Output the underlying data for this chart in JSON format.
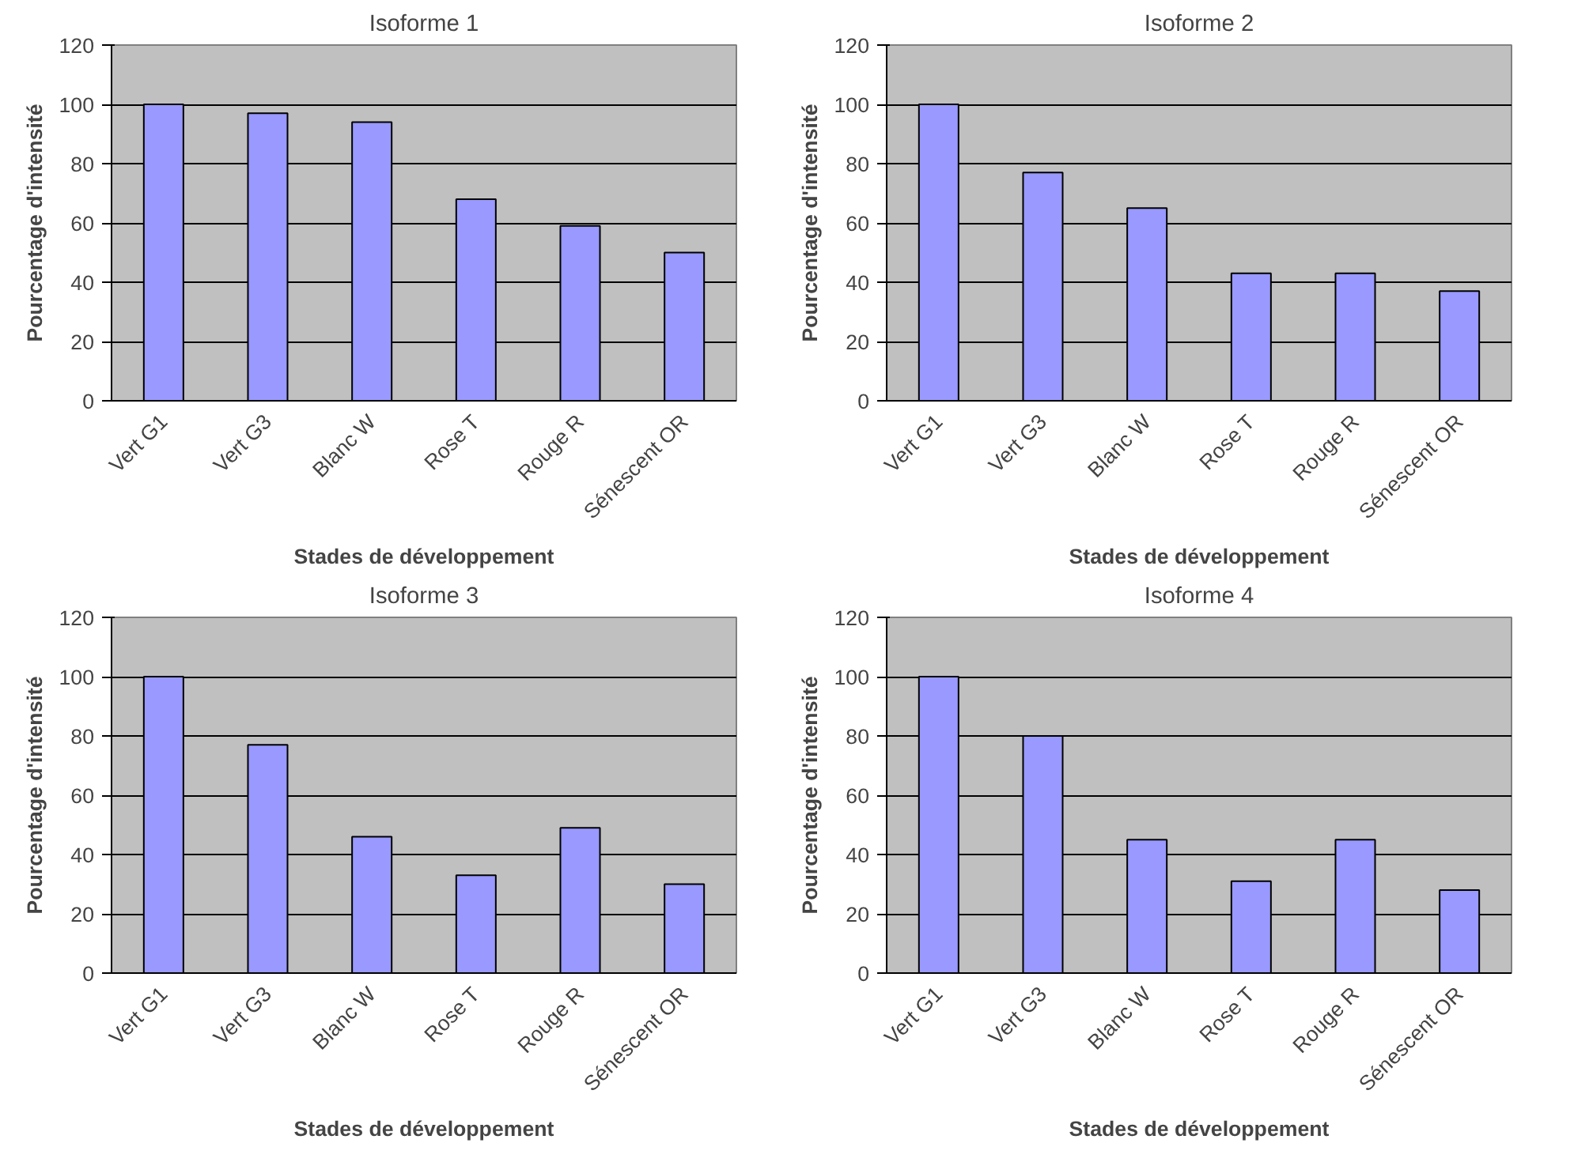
{
  "chart_data": [
    {
      "type": "bar",
      "title": "Isoforme 1",
      "xlabel": "Stades de développement",
      "ylabel": "Pourcentage d'intensité",
      "categories": [
        "Vert G1",
        "Vert G3",
        "Blanc W",
        "Rose T",
        "Rouge R",
        "Sénescent OR"
      ],
      "values": [
        100,
        97,
        94,
        68,
        59,
        50
      ],
      "color": "#9999ff",
      "ylim": [
        0,
        120
      ],
      "yticks": [
        0,
        20,
        40,
        60,
        80,
        100,
        120
      ],
      "grid": "y"
    },
    {
      "type": "bar",
      "title": "Isoforme 2",
      "xlabel": "Stades de développement",
      "ylabel": "Pourcentage d'intensité",
      "categories": [
        "Vert G1",
        "Vert G3",
        "Blanc W",
        "Rose T",
        "Rouge R",
        "Sénescent OR"
      ],
      "values": [
        100,
        77,
        65,
        43,
        43,
        37
      ],
      "color": "#9999ff",
      "ylim": [
        0,
        120
      ],
      "yticks": [
        0,
        20,
        40,
        60,
        80,
        100,
        120
      ],
      "grid": "y"
    },
    {
      "type": "bar",
      "title": "Isoforme 3",
      "xlabel": "Stades de développement",
      "ylabel": "Pourcentage d'intensité",
      "categories": [
        "Vert G1",
        "Vert G3",
        "Blanc W",
        "Rose T",
        "Rouge R",
        "Sénescent OR"
      ],
      "values": [
        100,
        77,
        46,
        33,
        49,
        30
      ],
      "color": "#9999ff",
      "ylim": [
        0,
        120
      ],
      "yticks": [
        0,
        20,
        40,
        60,
        80,
        100,
        120
      ],
      "grid": "y"
    },
    {
      "type": "bar",
      "title": "Isoforme 4",
      "xlabel": "Stades de développement",
      "ylabel": "Pourcentage d'intensité",
      "categories": [
        "Vert G1",
        "Vert G3",
        "Blanc W",
        "Rose T",
        "Rouge R",
        "Sénescent OR"
      ],
      "values": [
        100,
        80,
        45,
        31,
        45,
        28
      ],
      "color": "#9999ff",
      "ylim": [
        0,
        120
      ],
      "yticks": [
        0,
        20,
        40,
        60,
        80,
        100,
        120
      ],
      "grid": "y"
    }
  ]
}
